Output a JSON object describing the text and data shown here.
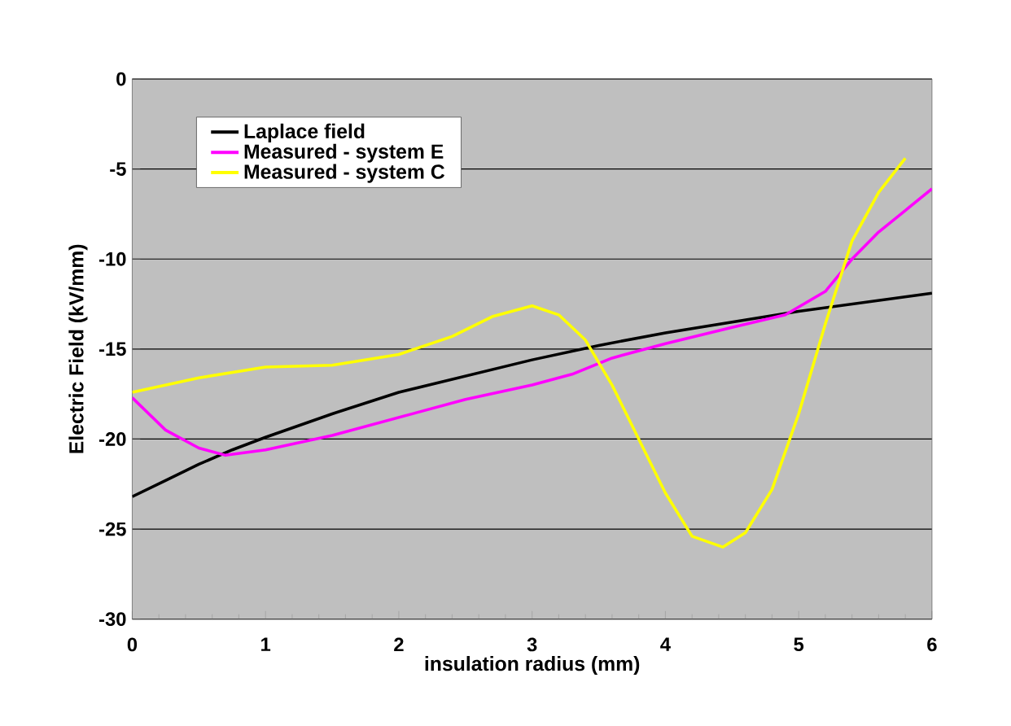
{
  "chart_data": {
    "type": "line",
    "xlabel": "insulation radius (mm)",
    "ylabel": "Electric Field (kV/mm)",
    "xlim": [
      0,
      6
    ],
    "ylim": [
      -30,
      0
    ],
    "xticks": [
      0,
      1,
      2,
      3,
      4,
      5,
      6
    ],
    "yticks": [
      -30,
      -25,
      -20,
      -15,
      -10,
      -5,
      0
    ],
    "grid": "y",
    "legend": "top left",
    "marker": "none",
    "line_style": "solid",
    "series": [
      {
        "name": "Laplace field",
        "color": "#000000",
        "x": [
          0,
          0.25,
          0.5,
          0.75,
          1,
          1.5,
          2,
          2.5,
          3,
          3.5,
          4,
          4.5,
          5,
          5.5,
          6
        ],
        "values": [
          -23.2,
          -22.3,
          -21.4,
          -20.6,
          -19.9,
          -18.6,
          -17.4,
          -16.5,
          -15.6,
          -14.8,
          -14.1,
          -13.5,
          -12.9,
          -12.4,
          -11.9
        ]
      },
      {
        "name": "Measured - system E",
        "color": "#ff00ff",
        "x": [
          0,
          0.25,
          0.5,
          0.7,
          1,
          1.5,
          2,
          2.5,
          3,
          3.3,
          3.6,
          4,
          4.5,
          4.9,
          5.2,
          5.4,
          5.6,
          5.8,
          6
        ],
        "values": [
          -17.7,
          -19.5,
          -20.5,
          -20.9,
          -20.6,
          -19.8,
          -18.8,
          -17.8,
          -17.0,
          -16.4,
          -15.5,
          -14.7,
          -13.8,
          -13.1,
          -11.8,
          -10.0,
          -8.5,
          -7.3,
          -6.1
        ]
      },
      {
        "name": "Measured - system C",
        "color": "#ffff00",
        "x": [
          0,
          0.5,
          1,
          1.5,
          2,
          2.4,
          2.7,
          3,
          3.2,
          3.4,
          3.6,
          3.8,
          4,
          4.2,
          4.43,
          4.6,
          4.8,
          5,
          5.2,
          5.4,
          5.6,
          5.8
        ],
        "values": [
          -17.4,
          -16.6,
          -16.0,
          -15.9,
          -15.3,
          -14.3,
          -13.2,
          -12.6,
          -13.1,
          -14.5,
          -17.0,
          -20.0,
          -23.0,
          -25.4,
          -26.0,
          -25.2,
          -22.8,
          -18.6,
          -13.6,
          -9.0,
          -6.3,
          -4.4
        ]
      }
    ]
  }
}
